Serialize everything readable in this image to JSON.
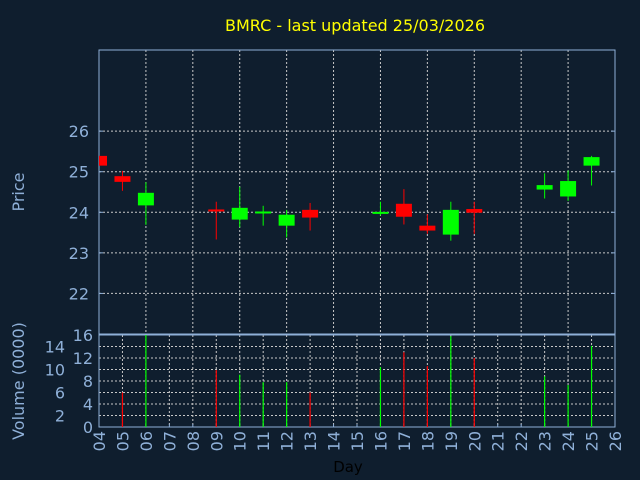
{
  "chart_data": [
    {
      "type": "candlestick",
      "title": "BMRC - last updated 25/03/2026",
      "ylabel": "Price",
      "ylim": [
        21,
        28
      ],
      "yticks": [
        22,
        23,
        24,
        25,
        26
      ],
      "grid": true,
      "colors": {
        "up": "#00ff00",
        "down": "#ff0000",
        "title": "#ffff00",
        "axis": "#8fb0d8",
        "grid": "#c8c8c8",
        "background": "#0f1e2e"
      },
      "candles": [
        {
          "day": "04",
          "open": 25.39,
          "high": 25.39,
          "low": 25.15,
          "close": 25.15
        },
        {
          "day": "05",
          "open": 24.89,
          "high": 25.02,
          "low": 24.53,
          "close": 24.75
        },
        {
          "day": "06",
          "open": 24.17,
          "high": 24.74,
          "low": 23.69,
          "close": 24.48
        },
        {
          "day": "09",
          "open": 24.07,
          "high": 24.26,
          "low": 23.33,
          "close": 24.02
        },
        {
          "day": "10",
          "open": 23.82,
          "high": 24.63,
          "low": 23.63,
          "close": 24.11
        },
        {
          "day": "11",
          "open": 23.97,
          "high": 24.16,
          "low": 23.67,
          "close": 24.02
        },
        {
          "day": "12",
          "open": 23.67,
          "high": 24.06,
          "low": 23.38,
          "close": 23.94
        },
        {
          "day": "13",
          "open": 24.06,
          "high": 24.23,
          "low": 23.55,
          "close": 23.87
        },
        {
          "day": "16",
          "open": 23.96,
          "high": 24.26,
          "low": 23.92,
          "close": 24.01
        },
        {
          "day": "17",
          "open": 24.21,
          "high": 24.57,
          "low": 23.7,
          "close": 23.89
        },
        {
          "day": "18",
          "open": 23.67,
          "high": 23.95,
          "low": 23.47,
          "close": 23.55
        },
        {
          "day": "19",
          "open": 23.45,
          "high": 24.26,
          "low": 23.3,
          "close": 24.06
        },
        {
          "day": "20",
          "open": 24.08,
          "high": 24.26,
          "low": 23.47,
          "close": 23.99
        },
        {
          "day": "23",
          "open": 24.56,
          "high": 24.96,
          "low": 24.34,
          "close": 24.67
        },
        {
          "day": "24",
          "open": 24.39,
          "high": 25.03,
          "low": 24.28,
          "close": 24.77
        },
        {
          "day": "25",
          "open": 25.15,
          "high": 25.39,
          "low": 24.66,
          "close": 25.36
        }
      ]
    },
    {
      "type": "bar",
      "ylabel": "Volume (0000)",
      "xlabel": "Day",
      "ylim": [
        0,
        16
      ],
      "yticks": [
        0,
        2,
        4,
        6,
        8,
        10,
        12,
        14,
        16
      ],
      "grid": true,
      "categories": [
        "04",
        "05",
        "06",
        "07",
        "08",
        "09",
        "10",
        "11",
        "12",
        "13",
        "14",
        "15",
        "16",
        "17",
        "18",
        "19",
        "20",
        "21",
        "22",
        "23",
        "24",
        "25",
        "26"
      ],
      "volumes": [
        {
          "day": "05",
          "value": 6.0,
          "direction": "down"
        },
        {
          "day": "06",
          "value": 16.0,
          "direction": "up"
        },
        {
          "day": "09",
          "value": 9.9,
          "direction": "down"
        },
        {
          "day": "10",
          "value": 9.1,
          "direction": "up"
        },
        {
          "day": "11",
          "value": 7.8,
          "direction": "up"
        },
        {
          "day": "12",
          "value": 7.8,
          "direction": "up"
        },
        {
          "day": "13",
          "value": 6.0,
          "direction": "down"
        },
        {
          "day": "16",
          "value": 10.4,
          "direction": "up"
        },
        {
          "day": "17",
          "value": 13.0,
          "direction": "down"
        },
        {
          "day": "18",
          "value": 10.6,
          "direction": "down"
        },
        {
          "day": "19",
          "value": 15.8,
          "direction": "up"
        },
        {
          "day": "20",
          "value": 12.0,
          "direction": "down"
        },
        {
          "day": "23",
          "value": 8.8,
          "direction": "up"
        },
        {
          "day": "24",
          "value": 7.3,
          "direction": "up"
        },
        {
          "day": "25",
          "value": 14.1,
          "direction": "up"
        }
      ]
    }
  ]
}
